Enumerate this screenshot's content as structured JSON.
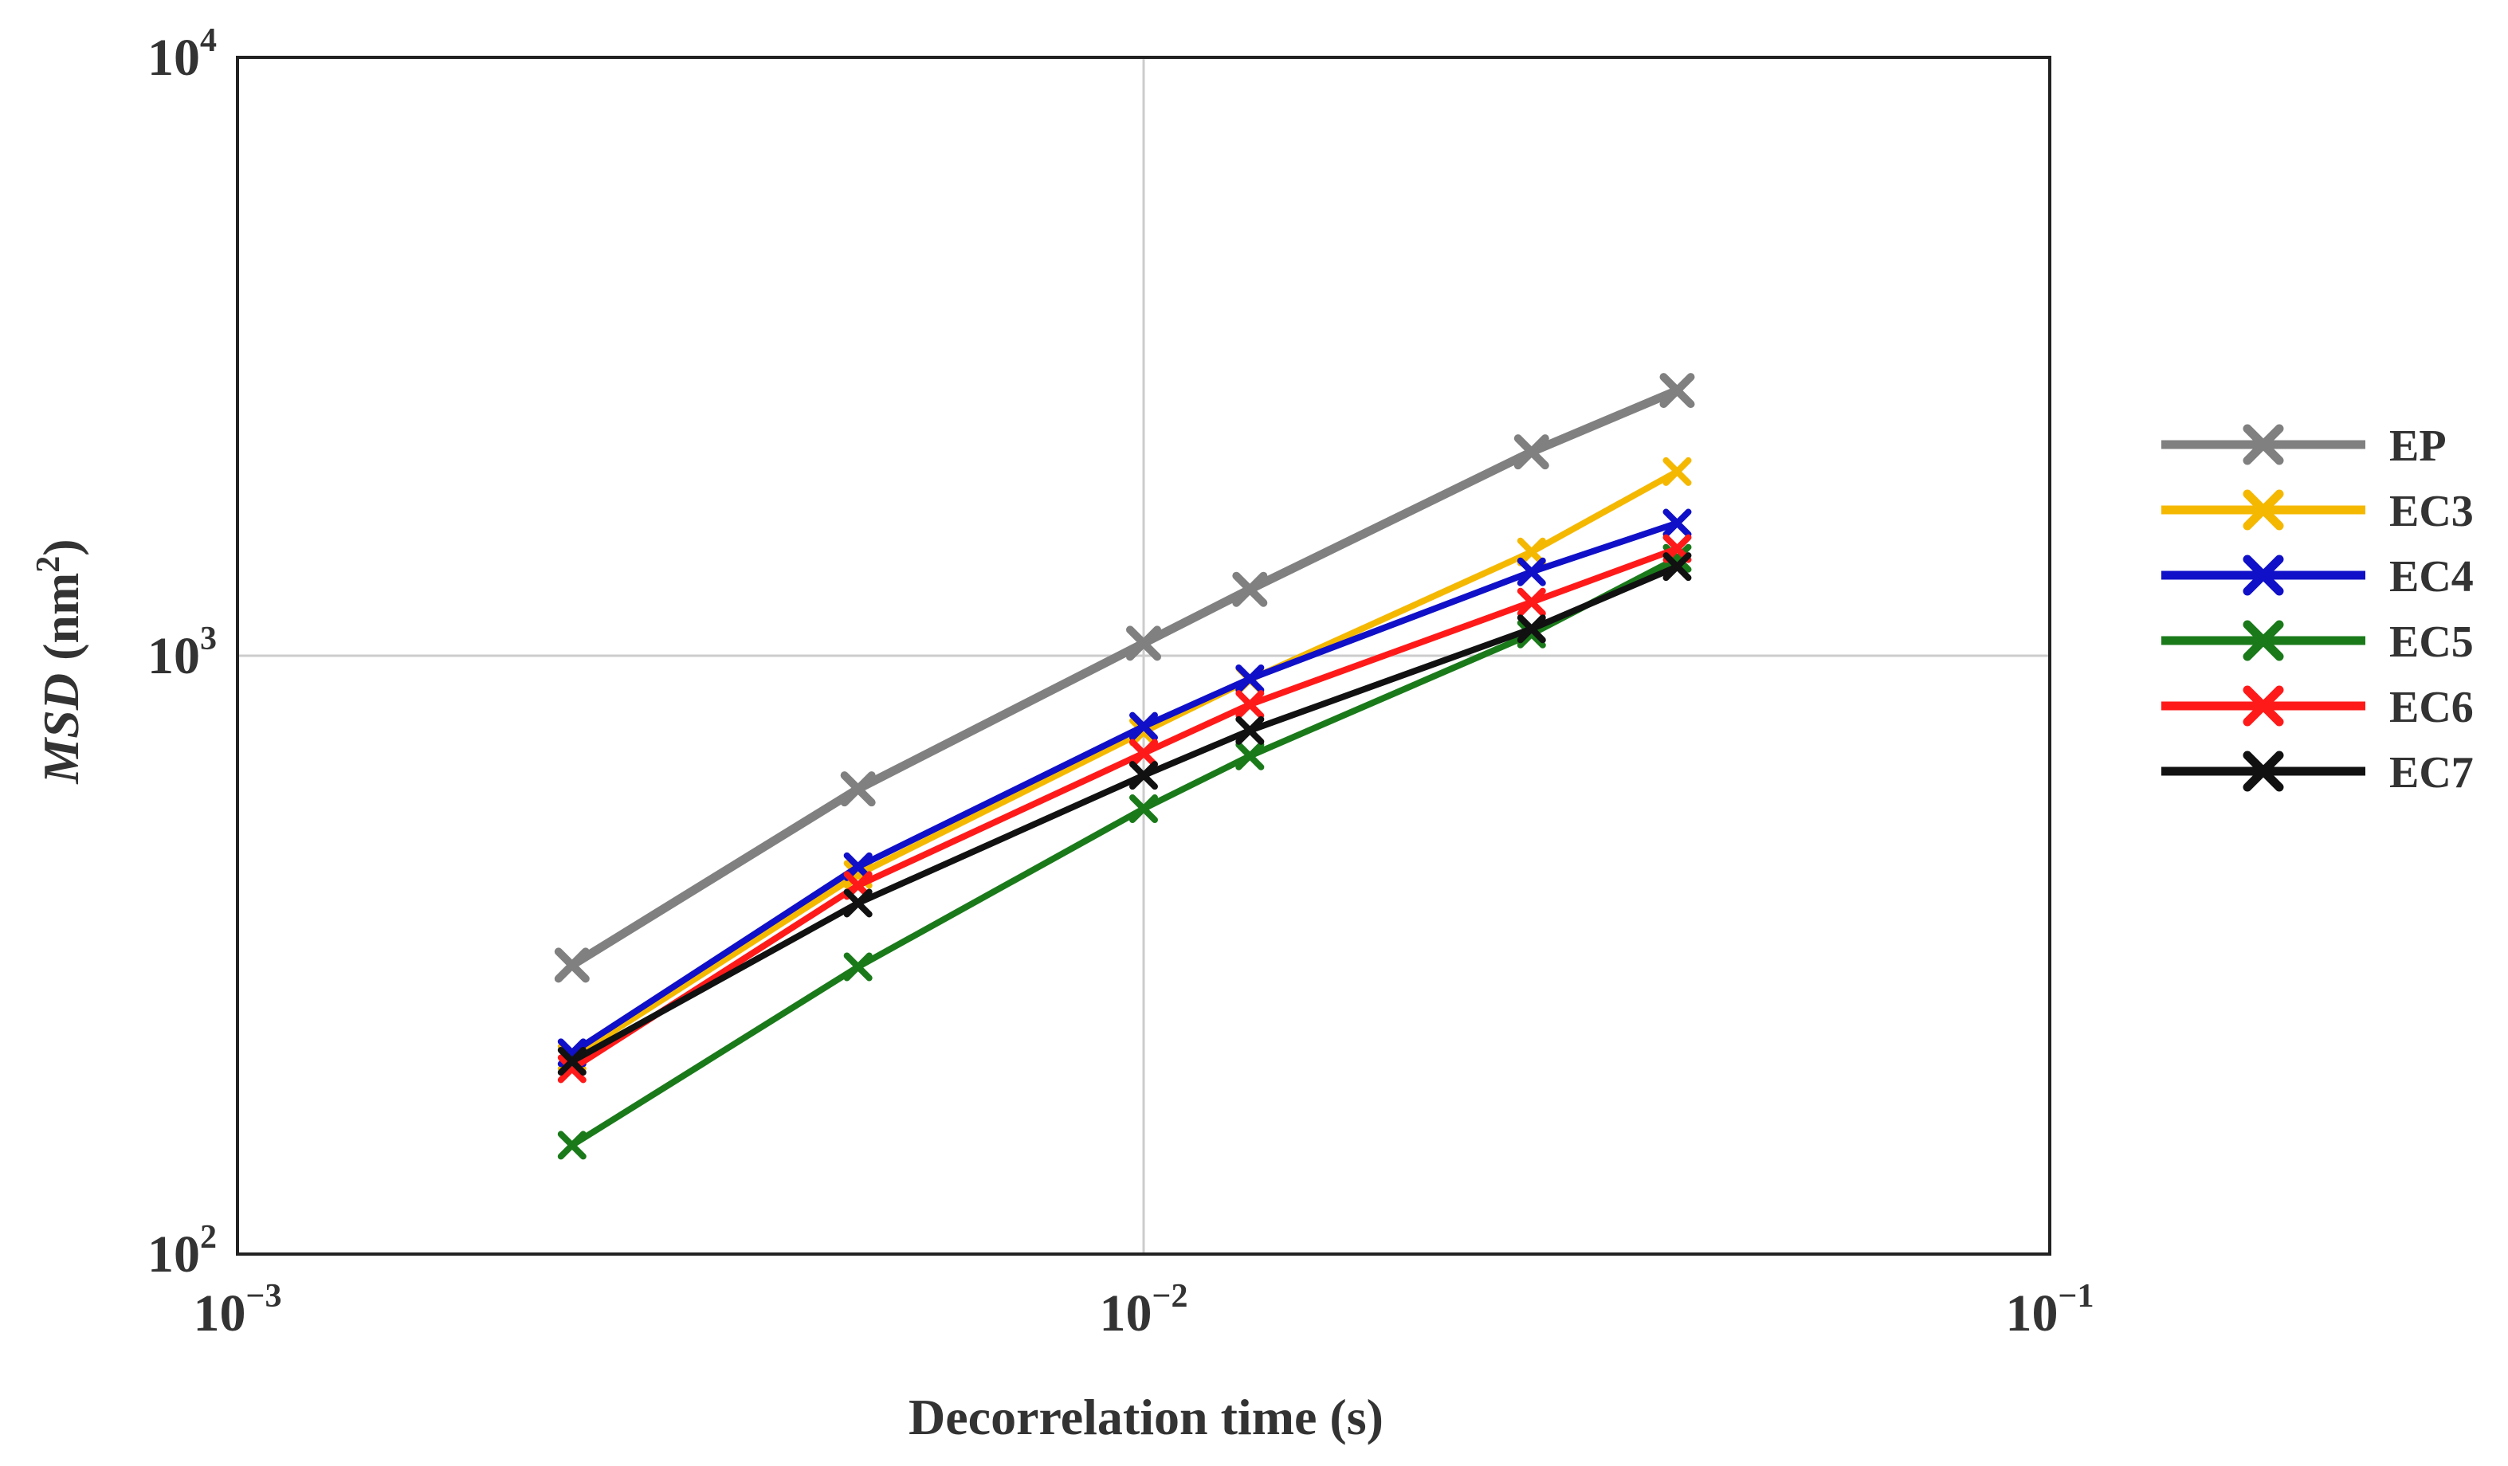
{
  "chart_data": {
    "type": "line",
    "title": "",
    "xlabel": "Decorrelation time (s)",
    "ylabel": {
      "italic": "MSD",
      "rest": " (nm",
      "sup": "2",
      "close": ")"
    },
    "xscale": "log",
    "yscale": "log",
    "xlim": [
      0.001,
      0.1
    ],
    "ylim": [
      100,
      10000
    ],
    "grid": true,
    "legend_position": "right",
    "x_ticks": [
      {
        "value": 0.001,
        "base": "10",
        "exp": "−3"
      },
      {
        "value": 0.01,
        "base": "10",
        "exp": "−2"
      },
      {
        "value": 0.1,
        "base": "10",
        "exp": "−1"
      }
    ],
    "y_ticks": [
      {
        "value": 100,
        "base": "10",
        "exp": "2"
      },
      {
        "value": 1000,
        "base": "10",
        "exp": "3"
      },
      {
        "value": 10000,
        "base": "10",
        "exp": "4"
      }
    ],
    "x": [
      0.00234,
      0.00484,
      0.01,
      0.0131,
      0.0268,
      0.0388
    ],
    "series": [
      {
        "name": "EP",
        "color": "#808080",
        "values": [
          304,
          599,
          1049,
          1291,
          2191,
          2775
        ]
      },
      {
        "name": "EC3",
        "color": "#f5b800",
        "values": [
          213,
          431,
          746,
          912,
          1491,
          2031
        ]
      },
      {
        "name": "EC4",
        "color": "#1010c8",
        "values": [
          217,
          444,
          762,
          915,
          1381,
          1666
        ]
      },
      {
        "name": "EC5",
        "color": "#1a7a1a",
        "values": [
          152,
          302,
          555,
          680,
          1087,
          1455
        ]
      },
      {
        "name": "EC6",
        "color": "#ff1a1a",
        "values": [
          204,
          413,
          687,
          829,
          1229,
          1510
        ]
      },
      {
        "name": "EC7",
        "color": "#111111",
        "values": [
          210,
          386,
          631,
          750,
          1109,
          1409
        ]
      }
    ]
  }
}
